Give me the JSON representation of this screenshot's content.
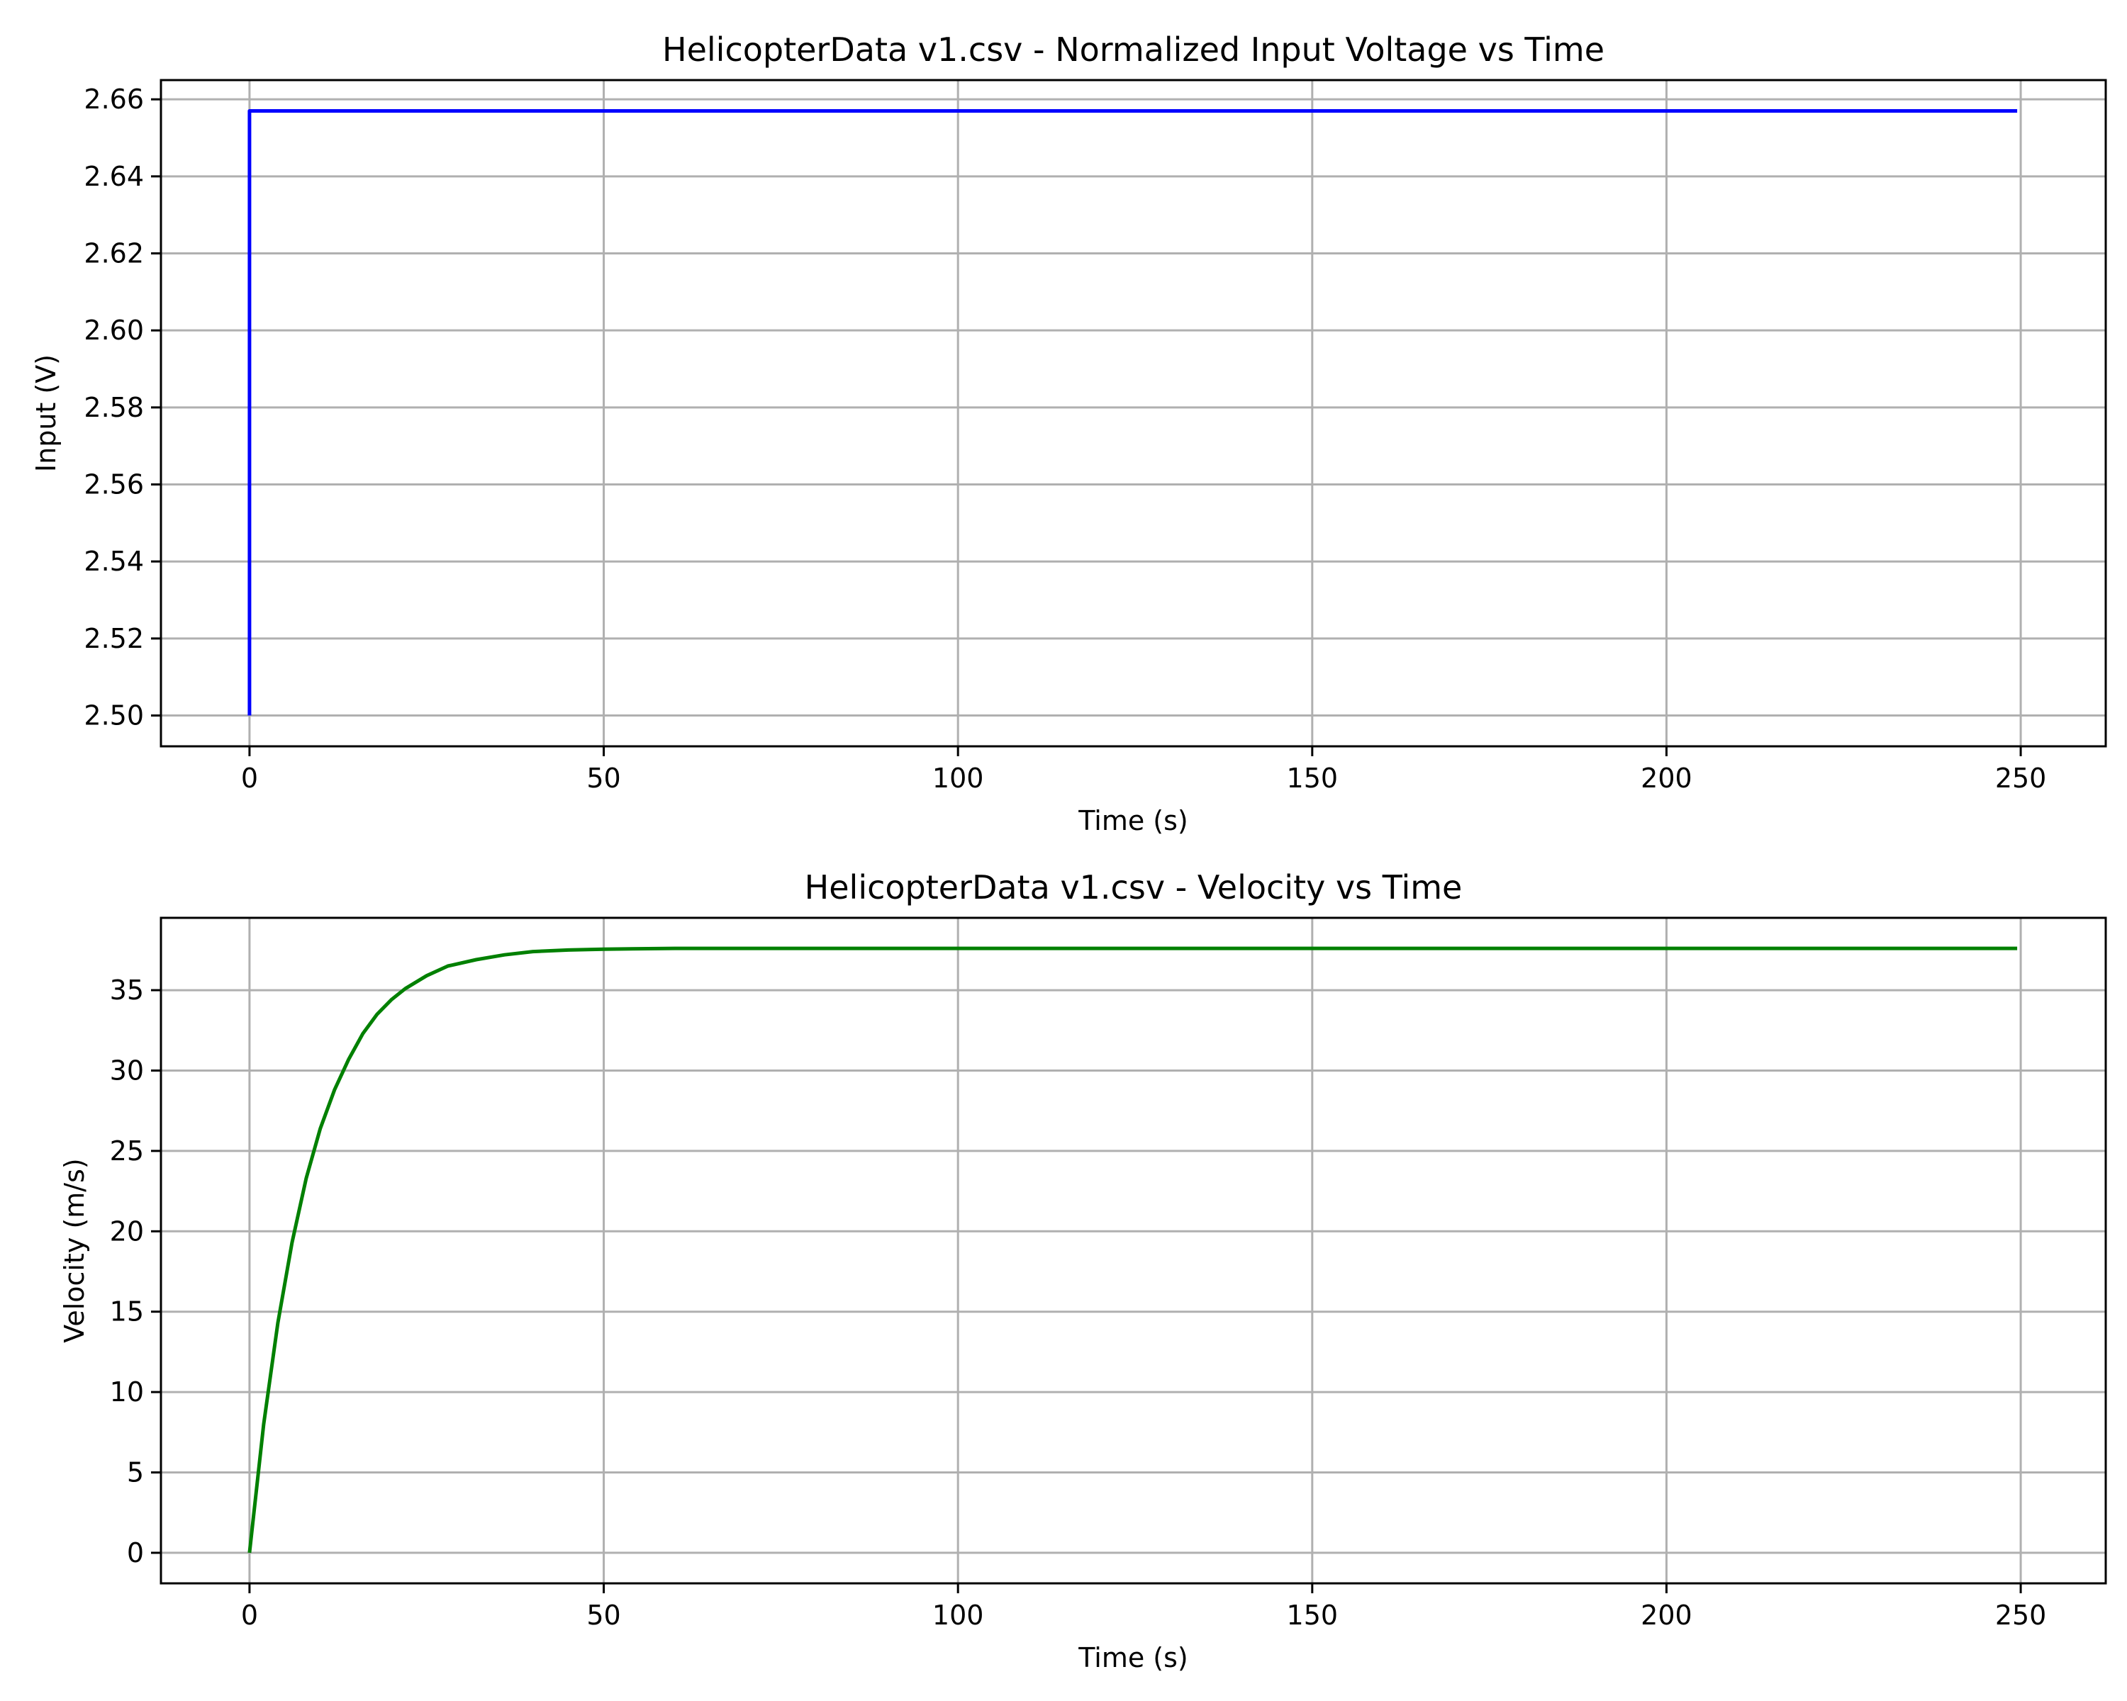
{
  "chart_data": [
    {
      "type": "line",
      "title": "HelicopterData v1.csv - Normalized Input Voltage vs Time",
      "xlabel": "Time (s)",
      "ylabel": "Input (V)",
      "xlim": [
        -12.5,
        262
      ],
      "ylim": [
        2.492,
        2.665
      ],
      "xticks": [
        0,
        50,
        100,
        150,
        200,
        250
      ],
      "xtick_labels": [
        "0",
        "50",
        "100",
        "150",
        "200",
        "250"
      ],
      "yticks": [
        2.5,
        2.52,
        2.54,
        2.56,
        2.58,
        2.6,
        2.62,
        2.64,
        2.66
      ],
      "ytick_labels": [
        "2.50",
        "2.52",
        "2.54",
        "2.56",
        "2.58",
        "2.60",
        "2.62",
        "2.64",
        "2.66"
      ],
      "grid": true,
      "series": [
        {
          "color": "#0000ff",
          "x": [
            0,
            0,
            0.2,
            249.5
          ],
          "y": [
            2.5,
            2.657,
            2.657,
            2.657
          ]
        }
      ]
    },
    {
      "type": "line",
      "title": "HelicopterData v1.csv - Velocity vs Time",
      "xlabel": "Time (s)",
      "ylabel": "Velocity (m/s)",
      "xlim": [
        -12.5,
        262
      ],
      "ylim": [
        -1.9,
        39.5
      ],
      "xticks": [
        0,
        50,
        100,
        150,
        200,
        250
      ],
      "xtick_labels": [
        "0",
        "50",
        "100",
        "150",
        "200",
        "250"
      ],
      "yticks": [
        0,
        5,
        10,
        15,
        20,
        25,
        30,
        35
      ],
      "ytick_labels": [
        "0",
        "5",
        "10",
        "15",
        "20",
        "25",
        "30",
        "35"
      ],
      "grid": true,
      "series": [
        {
          "color": "#008000",
          "x": [
            0,
            2,
            4,
            6,
            8,
            10,
            12,
            14,
            16,
            18,
            20,
            22,
            25,
            28,
            32,
            36,
            40,
            45,
            50,
            60,
            80,
            100,
            150,
            200,
            249.5
          ],
          "y": [
            0,
            8.0,
            14.3,
            19.3,
            23.3,
            26.4,
            28.8,
            30.7,
            32.3,
            33.5,
            34.4,
            35.1,
            35.9,
            36.5,
            36.9,
            37.2,
            37.4,
            37.5,
            37.55,
            37.6,
            37.6,
            37.6,
            37.6,
            37.6,
            37.6
          ]
        }
      ]
    }
  ]
}
